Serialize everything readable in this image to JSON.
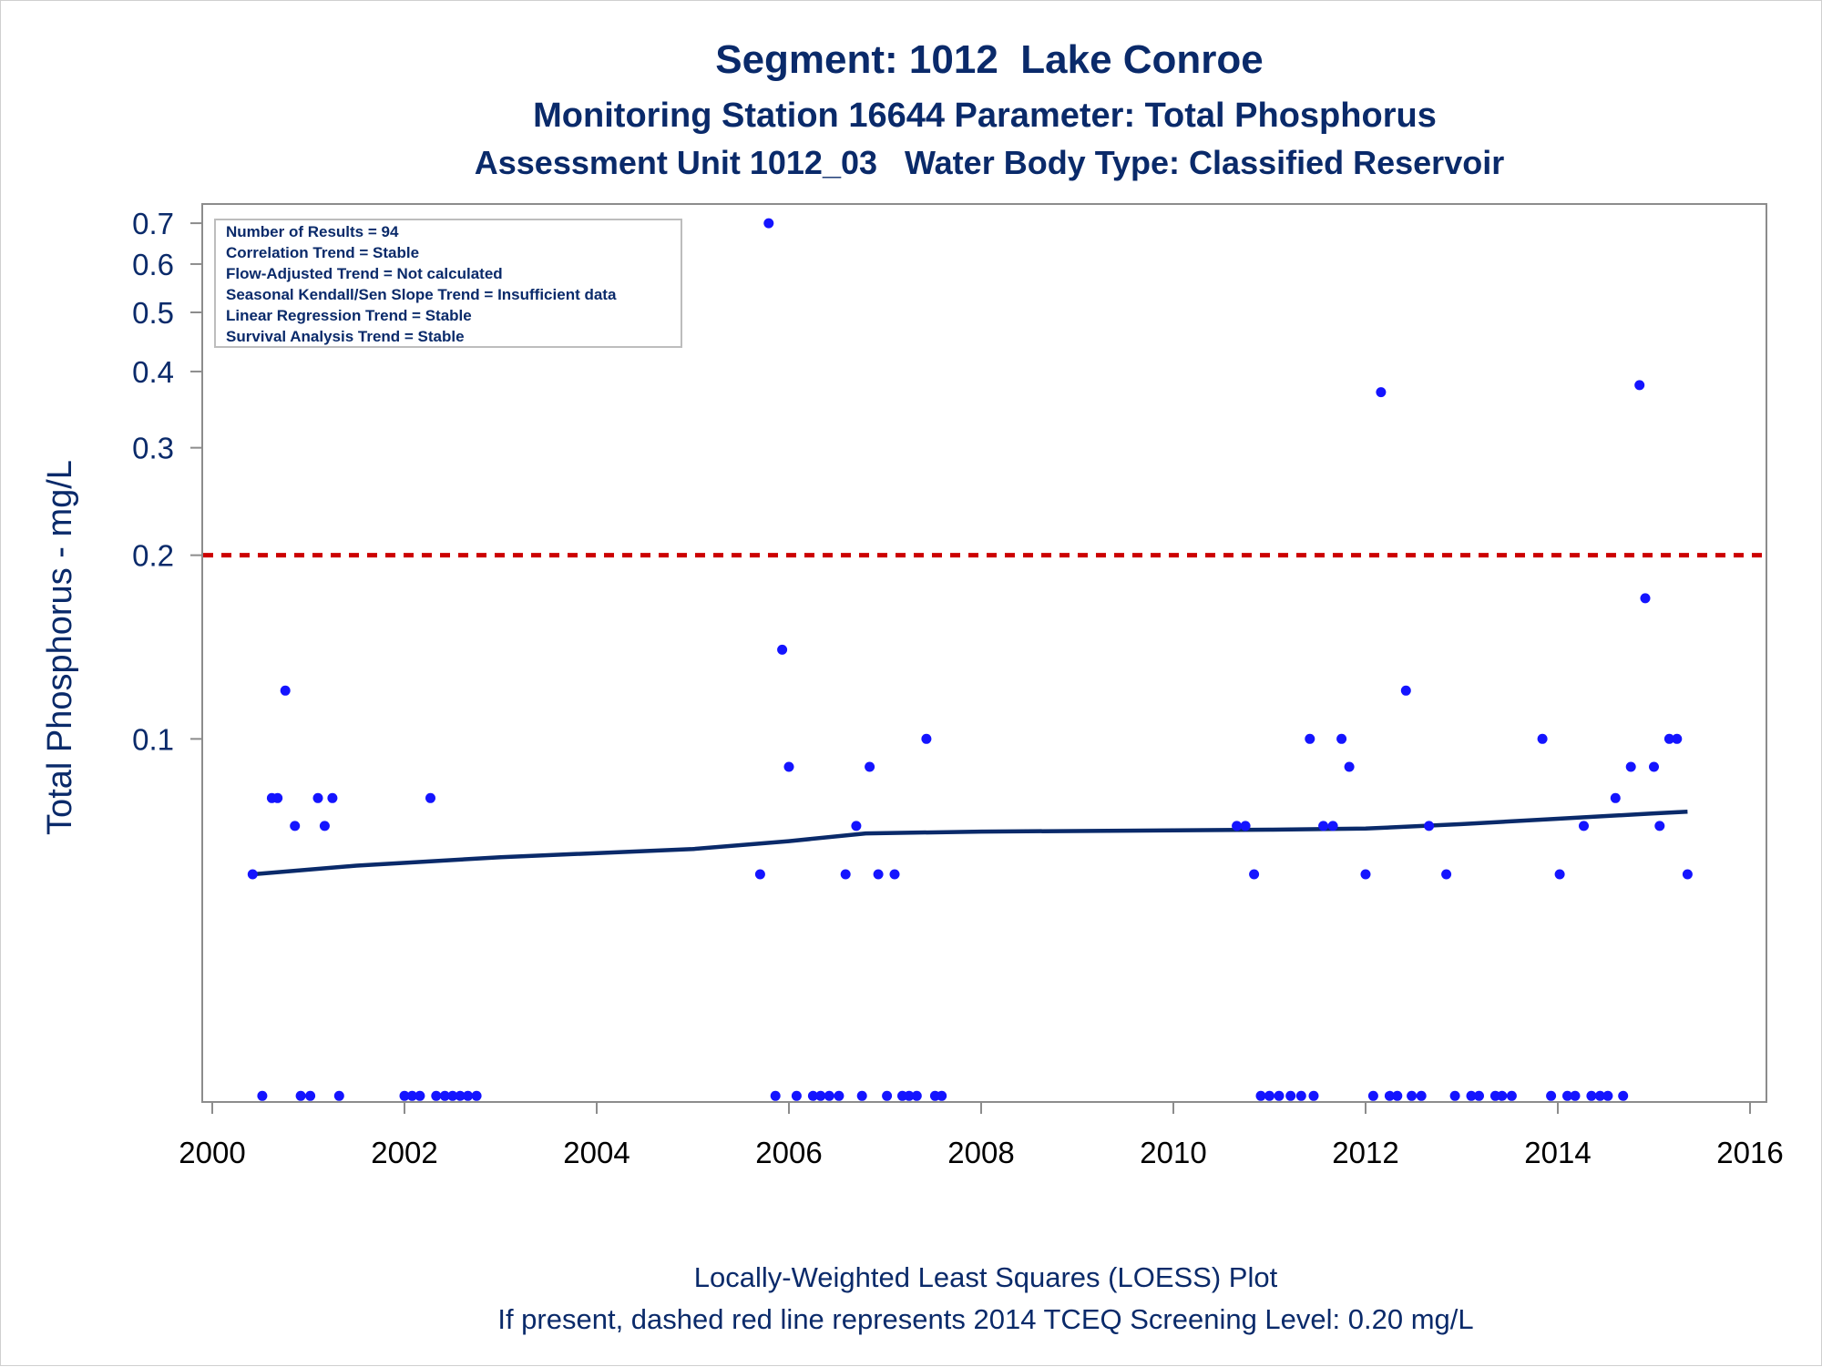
{
  "chart_data": {
    "type": "scatter",
    "title": "Segment: 1012  Lake Conroe",
    "subtitle": "Monitoring Station 16644 Parameter: Total Phosphorus",
    "subtitle2": "Assessment Unit 1012_03   Water Body Type: Classified Reservoir",
    "ylabel": "Total Phosphorus - mg/L",
    "xlabel": "",
    "footnotes": [
      "Locally-Weighted Least Squares (LOESS) Plot",
      "If present, dashed red line represents 2014 TCEQ Screening Level: 0.20 mg/L"
    ],
    "x_ticks": [
      2000,
      2002,
      2004,
      2006,
      2008,
      2010,
      2012,
      2014,
      2016
    ],
    "x_tick_labels": [
      "2000",
      "2002",
      "2004",
      "2006",
      "2008",
      "2010",
      "2012",
      "2014",
      "2016"
    ],
    "xlim": [
      2000,
      2016
    ],
    "y_scale": "log",
    "ylim": [
      0.0255,
      0.75
    ],
    "y_ticks": [
      0.1,
      0.2,
      0.3,
      0.4,
      0.5,
      0.6,
      0.7
    ],
    "y_tick_labels": [
      "0.1",
      "0.2",
      "0.3",
      "0.4",
      "0.5",
      "0.6",
      "0.7"
    ],
    "grid": false,
    "stats_box": {
      "placement": "top-left",
      "lines": [
        "Number of Results = 94",
        "Correlation Trend = Stable",
        "Flow-Adjusted Trend = Not calculated",
        "Seasonal Kendall/Sen Slope Trend = Insufficient data",
        "Linear Regression Trend = Stable",
        "Survival Analysis Trend = Stable"
      ]
    },
    "screening_level": {
      "value": 0.2,
      "color": "#cc0000",
      "style": "dashed"
    },
    "loess": {
      "color": "#0a2a6a",
      "points": [
        [
          2000.42,
          0.06
        ],
        [
          2001.5,
          0.062
        ],
        [
          2003.0,
          0.064
        ],
        [
          2005.0,
          0.066
        ],
        [
          2006.0,
          0.068
        ],
        [
          2006.8,
          0.07
        ],
        [
          2008.0,
          0.0705
        ],
        [
          2010.0,
          0.0708
        ],
        [
          2011.0,
          0.071
        ],
        [
          2012.0,
          0.0713
        ],
        [
          2013.0,
          0.0725
        ],
        [
          2014.0,
          0.074
        ],
        [
          2015.0,
          0.0755
        ],
        [
          2015.35,
          0.076
        ]
      ]
    },
    "series": [
      {
        "marker_color": "#1414ff",
        "points": [
          [
            2000.42,
            0.06
          ],
          [
            2000.52,
            0.026
          ],
          [
            2000.62,
            0.08
          ],
          [
            2000.68,
            0.08
          ],
          [
            2000.76,
            0.12
          ],
          [
            2000.86,
            0.072
          ],
          [
            2000.92,
            0.026
          ],
          [
            2001.02,
            0.026
          ],
          [
            2001.1,
            0.08
          ],
          [
            2001.17,
            0.072
          ],
          [
            2001.25,
            0.08
          ],
          [
            2001.32,
            0.026
          ],
          [
            2002.0,
            0.026
          ],
          [
            2002.08,
            0.026
          ],
          [
            2002.16,
            0.026
          ],
          [
            2002.27,
            0.08
          ],
          [
            2002.33,
            0.026
          ],
          [
            2002.42,
            0.026
          ],
          [
            2002.5,
            0.026
          ],
          [
            2002.58,
            0.026
          ],
          [
            2002.66,
            0.026
          ],
          [
            2002.75,
            0.026
          ],
          [
            2005.7,
            0.06
          ],
          [
            2005.79,
            0.7
          ],
          [
            2005.86,
            0.026
          ],
          [
            2005.93,
            0.14
          ],
          [
            2006.0,
            0.09
          ],
          [
            2006.08,
            0.026
          ],
          [
            2006.25,
            0.026
          ],
          [
            2006.33,
            0.026
          ],
          [
            2006.42,
            0.026
          ],
          [
            2006.52,
            0.026
          ],
          [
            2006.59,
            0.06
          ],
          [
            2006.7,
            0.072
          ],
          [
            2006.76,
            0.026
          ],
          [
            2006.84,
            0.09
          ],
          [
            2006.93,
            0.06
          ],
          [
            2007.02,
            0.026
          ],
          [
            2007.1,
            0.06
          ],
          [
            2007.18,
            0.026
          ],
          [
            2007.25,
            0.026
          ],
          [
            2007.33,
            0.026
          ],
          [
            2007.43,
            0.1
          ],
          [
            2007.52,
            0.026
          ],
          [
            2007.59,
            0.026
          ],
          [
            2010.66,
            0.072
          ],
          [
            2010.75,
            0.072
          ],
          [
            2010.84,
            0.06
          ],
          [
            2010.91,
            0.026
          ],
          [
            2011.0,
            0.026
          ],
          [
            2011.1,
            0.026
          ],
          [
            2011.22,
            0.026
          ],
          [
            2011.33,
            0.026
          ],
          [
            2011.42,
            0.1
          ],
          [
            2011.46,
            0.026
          ],
          [
            2011.56,
            0.072
          ],
          [
            2011.66,
            0.072
          ],
          [
            2011.75,
            0.1
          ],
          [
            2011.83,
            0.09
          ],
          [
            2012.0,
            0.06
          ],
          [
            2012.08,
            0.026
          ],
          [
            2012.16,
            0.37
          ],
          [
            2012.25,
            0.026
          ],
          [
            2012.33,
            0.026
          ],
          [
            2012.42,
            0.12
          ],
          [
            2012.48,
            0.026
          ],
          [
            2012.58,
            0.026
          ],
          [
            2012.66,
            0.072
          ],
          [
            2012.84,
            0.06
          ],
          [
            2012.93,
            0.026
          ],
          [
            2013.1,
            0.026
          ],
          [
            2013.18,
            0.026
          ],
          [
            2013.35,
            0.026
          ],
          [
            2013.42,
            0.026
          ],
          [
            2013.52,
            0.026
          ],
          [
            2013.84,
            0.1
          ],
          [
            2013.93,
            0.026
          ],
          [
            2014.02,
            0.06
          ],
          [
            2014.1,
            0.026
          ],
          [
            2014.18,
            0.026
          ],
          [
            2014.27,
            0.072
          ],
          [
            2014.35,
            0.026
          ],
          [
            2014.44,
            0.026
          ],
          [
            2014.52,
            0.026
          ],
          [
            2014.6,
            0.08
          ],
          [
            2014.68,
            0.026
          ],
          [
            2014.76,
            0.09
          ],
          [
            2014.85,
            0.38
          ],
          [
            2014.91,
            0.17
          ],
          [
            2015.0,
            0.09
          ],
          [
            2015.06,
            0.072
          ],
          [
            2015.16,
            0.1
          ],
          [
            2015.24,
            0.1
          ],
          [
            2015.35,
            0.06
          ]
        ]
      }
    ]
  }
}
